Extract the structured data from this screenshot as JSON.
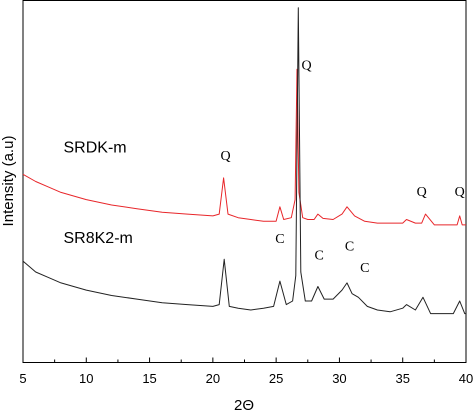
{
  "chart_data": {
    "type": "line",
    "title": "",
    "xlabel": "2Θ",
    "ylabel": "Intensity (a.u)",
    "xlim": [
      5,
      40
    ],
    "ylim": [
      0,
      100
    ],
    "y_ticks_shown": false,
    "x_ticks": [
      "5",
      "10",
      "15",
      "20",
      "25",
      "30",
      "35",
      "40"
    ],
    "grid": false,
    "legend": "none",
    "series": [
      {
        "name": "SRDK-m",
        "color": "#e8262a",
        "x": [
          5,
          6,
          7,
          8,
          9,
          10,
          12,
          14,
          16,
          18,
          20,
          20.5,
          20.85,
          21.2,
          22,
          23,
          24,
          25,
          25.3,
          25.6,
          26.2,
          26.5,
          26.65,
          26.8,
          27.1,
          27.5,
          28,
          28.3,
          28.7,
          29.5,
          30.2,
          30.6,
          31.2,
          32,
          33,
          34,
          35,
          35.3,
          36,
          36.5,
          36.8,
          37.5,
          38.5,
          39.3,
          39.5,
          39.7,
          40
        ],
        "y": [
          52,
          50,
          48.5,
          47,
          46,
          45,
          43.5,
          42.5,
          41.5,
          41,
          40.5,
          41,
          51,
          41,
          40,
          39.5,
          39,
          39,
          43,
          39.5,
          40,
          45,
          81,
          47,
          40,
          39.5,
          39.5,
          41,
          39.8,
          39.5,
          41,
          43,
          40.5,
          39,
          38.5,
          38.5,
          38.5,
          39.5,
          38.5,
          38.5,
          41,
          38,
          38,
          38,
          40.5,
          38,
          38
        ]
      },
      {
        "name": "SR8K2-m",
        "color": "#222222",
        "x": [
          5,
          6,
          7,
          8,
          9,
          10,
          12,
          14,
          16,
          18,
          20,
          20.5,
          20.9,
          21.3,
          22,
          23,
          24,
          24.8,
          25.3,
          25.8,
          26.3,
          26.55,
          26.75,
          26.95,
          27.3,
          27.8,
          28.3,
          28.8,
          29.5,
          30.2,
          30.6,
          31,
          31.5,
          32.2,
          33,
          34,
          35,
          35.3,
          36,
          36.6,
          37.2,
          38,
          39,
          39.5,
          39.9,
          40
        ],
        "y": [
          28,
          25,
          23.5,
          22,
          21,
          20,
          18.5,
          17.5,
          16.5,
          16,
          15.5,
          16,
          28.5,
          15.5,
          15,
          14.5,
          15,
          15.5,
          22.5,
          16,
          17,
          24,
          98,
          25,
          17,
          17,
          21,
          17.5,
          17.5,
          20,
          22,
          19,
          18,
          15.5,
          14.5,
          14,
          15,
          16,
          14.5,
          18,
          13.5,
          13.5,
          13.5,
          17,
          13.5,
          13.5
        ]
      }
    ],
    "series_labels": [
      {
        "text": "SRDK-m",
        "x": 8.2,
        "y": 58
      },
      {
        "text": "SR8K2-m",
        "x": 8.2,
        "y": 33
      }
    ],
    "annotations": [
      {
        "text": "Q",
        "x": 21,
        "y": 56
      },
      {
        "text": "Q",
        "x": 27.4,
        "y": 81
      },
      {
        "text": "Q",
        "x": 36.5,
        "y": 46
      },
      {
        "text": "Q",
        "x": 39.5,
        "y": 46
      },
      {
        "text": "C",
        "x": 25.3,
        "y": 33
      },
      {
        "text": "C",
        "x": 28.4,
        "y": 28.5
      },
      {
        "text": "C",
        "x": 30.8,
        "y": 31
      },
      {
        "text": "C",
        "x": 32,
        "y": 25
      }
    ]
  }
}
